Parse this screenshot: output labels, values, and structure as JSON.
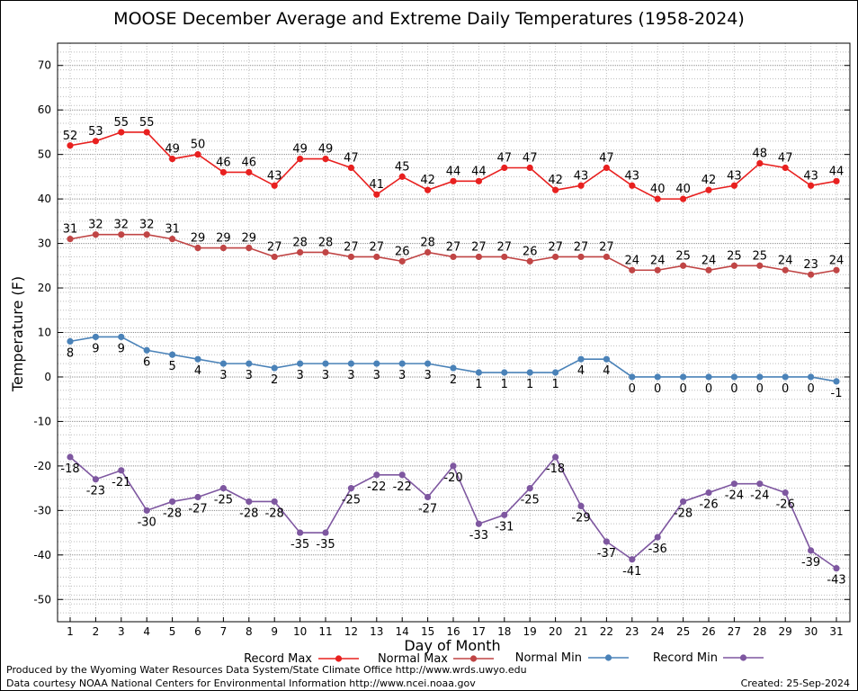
{
  "chart_data": {
    "type": "line",
    "title": "MOOSE December Average and Extreme Daily Temperatures (1958-2024)",
    "xlabel": "Day of Month",
    "ylabel": "Temperature (F)",
    "ylim": [
      -55,
      75
    ],
    "yticks": [
      -50,
      -40,
      -30,
      -20,
      -10,
      0,
      10,
      20,
      30,
      40,
      50,
      60,
      70
    ],
    "grid": true,
    "legend_position": "bottom",
    "x": [
      1,
      2,
      3,
      4,
      5,
      6,
      7,
      8,
      9,
      10,
      11,
      12,
      13,
      14,
      15,
      16,
      17,
      18,
      19,
      20,
      21,
      22,
      23,
      24,
      25,
      26,
      27,
      28,
      29,
      30,
      31
    ],
    "series": [
      {
        "name": "Record Max",
        "color": "#e8201f",
        "label_pos": "above",
        "values": [
          52,
          53,
          55,
          55,
          49,
          50,
          46,
          46,
          43,
          49,
          49,
          47,
          41,
          45,
          42,
          44,
          44,
          47,
          47,
          42,
          43,
          47,
          43,
          40,
          40,
          42,
          43,
          48,
          47,
          43,
          44
        ]
      },
      {
        "name": "Normal Max",
        "color": "#c04545",
        "label_pos": "above",
        "values": [
          31,
          32,
          32,
          32,
          31,
          29,
          29,
          29,
          27,
          28,
          28,
          27,
          27,
          26,
          28,
          27,
          27,
          27,
          26,
          27,
          27,
          27,
          24,
          24,
          25,
          24,
          25,
          25,
          24,
          23,
          24
        ]
      },
      {
        "name": "Normal Min",
        "color": "#4a82b8",
        "label_pos": "below",
        "values": [
          8,
          9,
          9,
          6,
          5,
          4,
          3,
          3,
          2,
          3,
          3,
          3,
          3,
          3,
          3,
          2,
          1,
          1,
          1,
          1,
          4,
          4,
          0,
          0,
          0,
          0,
          0,
          0,
          0,
          0,
          -1
        ]
      },
      {
        "name": "Record Min",
        "color": "#7e57a0",
        "label_pos": "below",
        "values": [
          -18,
          -23,
          -21,
          -30,
          -28,
          -27,
          -25,
          -28,
          -28,
          -35,
          -35,
          -25,
          -22,
          -22,
          -27,
          -20,
          -33,
          -31,
          -25,
          -18,
          -29,
          -37,
          -41,
          -36,
          -28,
          -26,
          -24,
          -24,
          -26,
          -39,
          -43
        ]
      }
    ]
  },
  "footer": {
    "produced_by": "Produced by the Wyoming Water Resources Data System/State Climate Office http://www.wrds.uwyo.edu",
    "courtesy": "Data courtesy NOAA National Centers for Environmental Information http://www.ncei.noaa.gov",
    "created": "Created:  25-Sep-2024"
  }
}
